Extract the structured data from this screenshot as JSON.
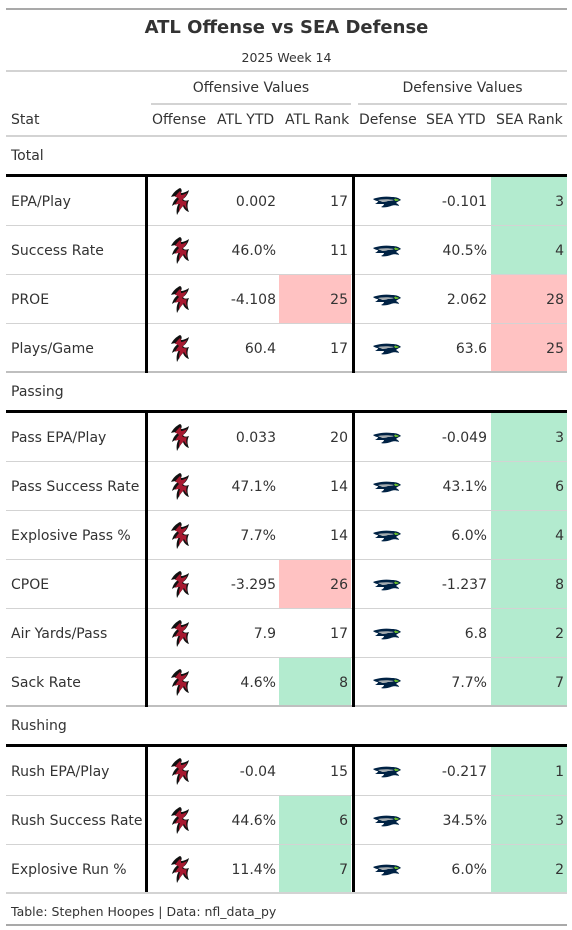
{
  "header": {
    "title": "ATL Offense vs SEA Defense",
    "subtitle": "2025 Week 14"
  },
  "spanners": {
    "offense": "Offensive Values",
    "defense": "Defensive Values"
  },
  "columns": {
    "stat": "Stat",
    "offense": "Offense",
    "atl_ytd": "ATL YTD",
    "atl_rank": "ATL Rank",
    "defense": "Defense",
    "sea_ytd": "SEA YTD",
    "sea_rank": "SEA Rank"
  },
  "colors": {
    "good": "#b3ebcf",
    "bad": "#ffc2c2",
    "falcons_red": "#a71930",
    "seahawks_navy": "#002244",
    "seahawks_green": "#69be28",
    "seahawks_grey": "#a5acaf"
  },
  "icons": {
    "offense": "falcons-logo-icon",
    "defense": "seahawks-logo-icon"
  },
  "chart_data": {
    "type": "table",
    "title": "ATL Offense vs SEA Defense",
    "subtitle": "2025 Week 14",
    "groups": [
      {
        "label": "Total",
        "rows": [
          {
            "stat": "EPA/Play",
            "atl_ytd": "0.002",
            "atl_rank": "17",
            "atl_color": "",
            "sea_ytd": "-0.101",
            "sea_rank": "3",
            "sea_color": "good"
          },
          {
            "stat": "Success Rate",
            "atl_ytd": "46.0%",
            "atl_rank": "11",
            "atl_color": "",
            "sea_ytd": "40.5%",
            "sea_rank": "4",
            "sea_color": "good"
          },
          {
            "stat": "PROE",
            "atl_ytd": "-4.108",
            "atl_rank": "25",
            "atl_color": "bad",
            "sea_ytd": "2.062",
            "sea_rank": "28",
            "sea_color": "bad"
          },
          {
            "stat": "Plays/Game",
            "atl_ytd": "60.4",
            "atl_rank": "17",
            "atl_color": "",
            "sea_ytd": "63.6",
            "sea_rank": "25",
            "sea_color": "bad"
          }
        ]
      },
      {
        "label": "Passing",
        "rows": [
          {
            "stat": "Pass EPA/Play",
            "atl_ytd": "0.033",
            "atl_rank": "20",
            "atl_color": "",
            "sea_ytd": "-0.049",
            "sea_rank": "3",
            "sea_color": "good"
          },
          {
            "stat": "Pass Success Rate",
            "atl_ytd": "47.1%",
            "atl_rank": "14",
            "atl_color": "",
            "sea_ytd": "43.1%",
            "sea_rank": "6",
            "sea_color": "good"
          },
          {
            "stat": "Explosive Pass %",
            "atl_ytd": "7.7%",
            "atl_rank": "14",
            "atl_color": "",
            "sea_ytd": "6.0%",
            "sea_rank": "4",
            "sea_color": "good"
          },
          {
            "stat": "CPOE",
            "atl_ytd": "-3.295",
            "atl_rank": "26",
            "atl_color": "bad",
            "sea_ytd": "-1.237",
            "sea_rank": "8",
            "sea_color": "good"
          },
          {
            "stat": "Air Yards/Pass",
            "atl_ytd": "7.9",
            "atl_rank": "17",
            "atl_color": "",
            "sea_ytd": "6.8",
            "sea_rank": "2",
            "sea_color": "good"
          },
          {
            "stat": "Sack Rate",
            "atl_ytd": "4.6%",
            "atl_rank": "8",
            "atl_color": "good",
            "sea_ytd": "7.7%",
            "sea_rank": "7",
            "sea_color": "good"
          }
        ]
      },
      {
        "label": "Rushing",
        "rows": [
          {
            "stat": "Rush EPA/Play",
            "atl_ytd": "-0.04",
            "atl_rank": "15",
            "atl_color": "",
            "sea_ytd": "-0.217",
            "sea_rank": "1",
            "sea_color": "good"
          },
          {
            "stat": "Rush Success Rate",
            "atl_ytd": "44.6%",
            "atl_rank": "6",
            "atl_color": "good",
            "sea_ytd": "34.5%",
            "sea_rank": "3",
            "sea_color": "good"
          },
          {
            "stat": "Explosive Run %",
            "atl_ytd": "11.4%",
            "atl_rank": "7",
            "atl_color": "good",
            "sea_ytd": "6.0%",
            "sea_rank": "2",
            "sea_color": "good"
          }
        ]
      }
    ]
  },
  "footer": {
    "source": "Table: Stephen Hoopes | Data: nfl_data_py"
  }
}
